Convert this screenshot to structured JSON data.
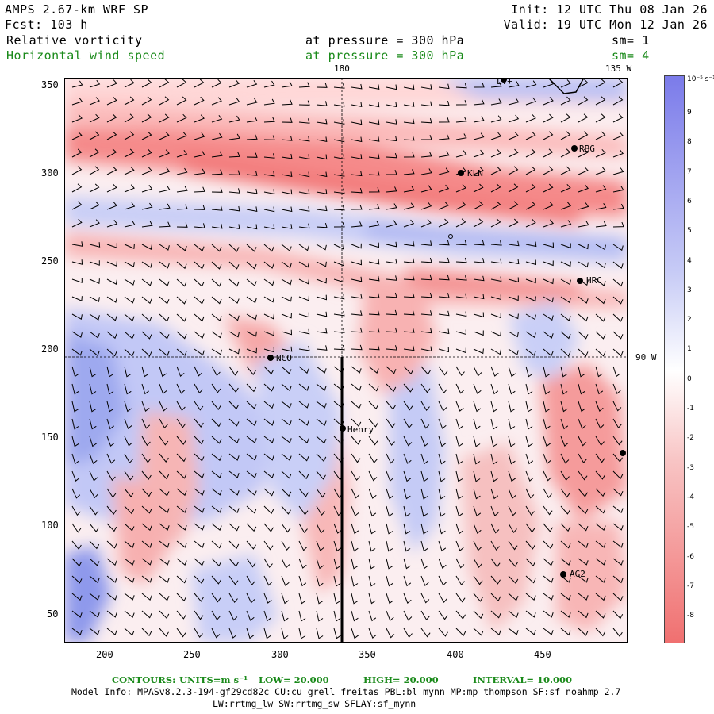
{
  "header": {
    "model": "AMPS 2.67-km WRF SP",
    "fcst": "Fcst: 103 h",
    "init": "Init: 12 UTC Thu 08 Jan 26",
    "valid": "Valid: 19 UTC Mon 12 Jan 26",
    "field1_name": "Relative vorticity",
    "field1_level": "at pressure =  300 hPa",
    "field1_sm": "sm= 1",
    "field2_name": "Horizontal wind speed",
    "field2_level": "at pressure =  300 hPa",
    "field2_sm": "sm= 4"
  },
  "map": {
    "meridian_180": "180",
    "meridian_135w": "135 W",
    "meridian_90w": "90 W",
    "x_ticks": [
      "200",
      "250",
      "300",
      "350",
      "400",
      "450"
    ],
    "y_ticks": [
      "350",
      "300",
      "250",
      "200",
      "150",
      "100",
      "50"
    ],
    "stations": [
      {
        "name": "LV+"
      },
      {
        "name": "RBG"
      },
      {
        "name": "KLN"
      },
      {
        "name": "HRC"
      },
      {
        "name": "NCO"
      },
      {
        "name": "Henry"
      },
      {
        "name": "AG2"
      }
    ]
  },
  "colorbar": {
    "unit": "10⁻⁵ s⁻¹",
    "labels": [
      "9",
      "8",
      "7",
      "6",
      "5",
      "4",
      "3",
      "2",
      "1",
      "0",
      "-1",
      "-2",
      "-3",
      "-4",
      "-5",
      "-6",
      "-7",
      "-8"
    ]
  },
  "contours": {
    "label": "CONTOURS:",
    "units": "UNITS=m s⁻¹",
    "low": "LOW=  20.000",
    "high": "HIGH=  20.000",
    "interval": "INTERVAL=   10.000"
  },
  "footer": {
    "line1": "Model Info: MPASv8.2.3-194-gf29cd82c CU:cu_grell_freitas PBL:bl_mynn MP:mp_thompson SF:sf_noahmp 2.7",
    "line2": "LW:rrtmg_lw SW:rrtmg_sw SFLAY:sf_mynn"
  },
  "colors": {
    "blue": "#7b7bea",
    "red": "#f07070",
    "green": "#1a8a1a"
  }
}
